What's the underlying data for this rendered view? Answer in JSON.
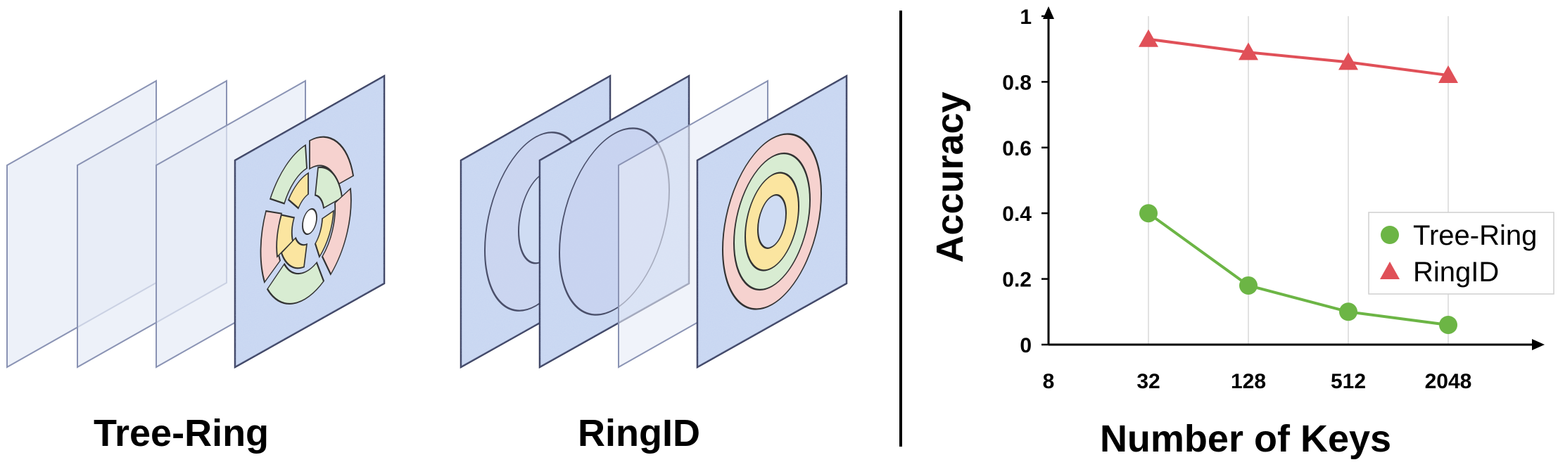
{
  "illustrations": {
    "left_caption": "Tree-Ring",
    "right_caption": "RingID"
  },
  "chart_data": {
    "type": "line",
    "title": "",
    "xlabel": "Number of Keys",
    "ylabel": "Accuracy",
    "x_scale": "log2",
    "x_ticks": [
      "8",
      "32",
      "128",
      "512",
      "2048"
    ],
    "x": [
      32,
      128,
      512,
      2048
    ],
    "ylim": [
      0,
      1
    ],
    "y_ticks": [
      "0",
      "0.2",
      "0.4",
      "0.6",
      "0.8",
      "1"
    ],
    "grid": "vertical",
    "legend_position": "right",
    "series": [
      {
        "name": "Tree-Ring",
        "values": [
          0.4,
          0.18,
          0.1,
          0.06
        ],
        "color": "#6cb545",
        "marker": "circle"
      },
      {
        "name": "RingID",
        "values": [
          0.93,
          0.89,
          0.86,
          0.82
        ],
        "color": "#e05058",
        "marker": "triangle"
      }
    ]
  }
}
